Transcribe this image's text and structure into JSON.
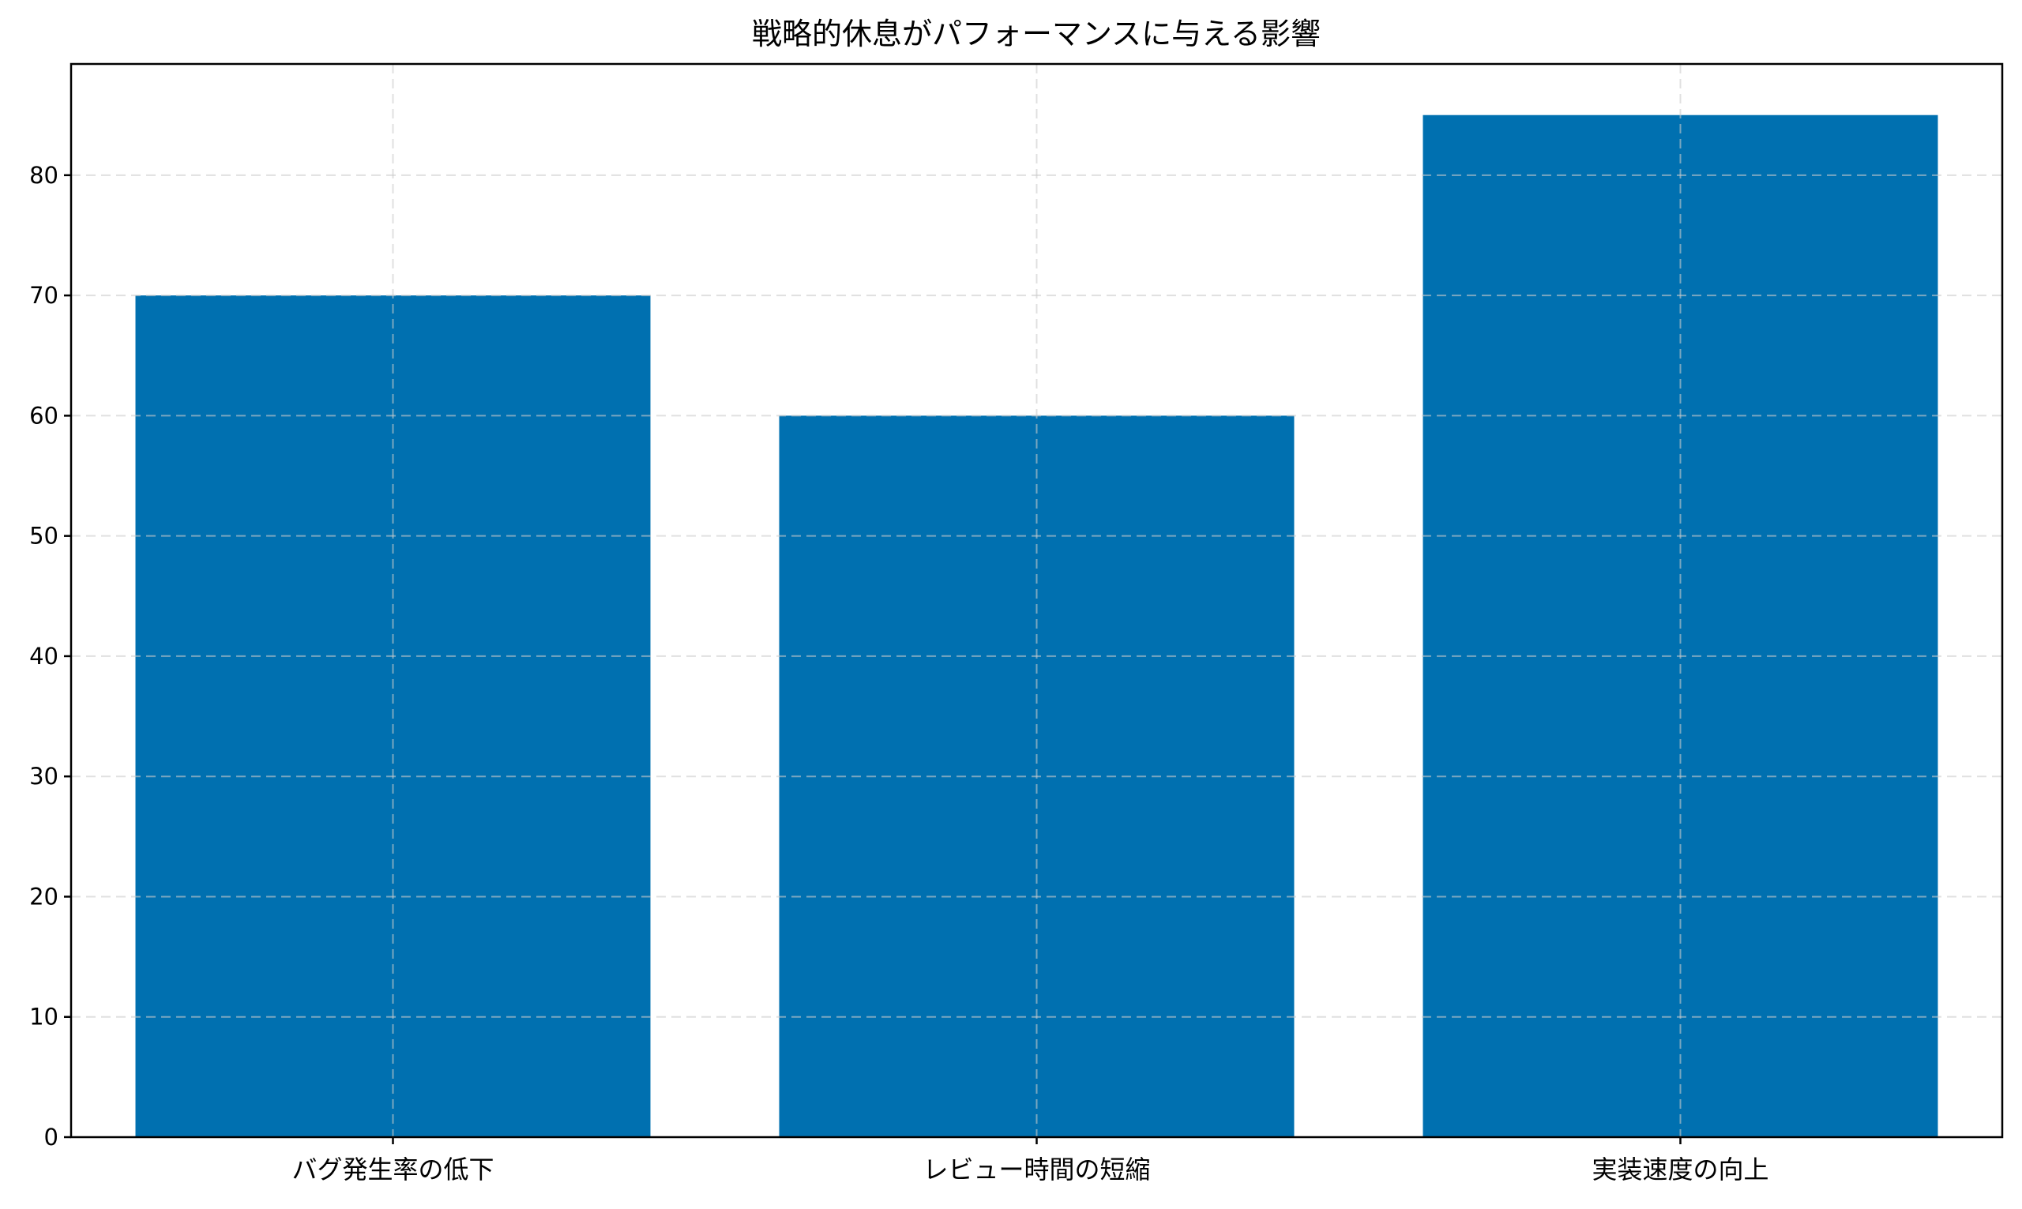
{
  "chart_data": {
    "type": "bar",
    "title": "戦略的休息がパフォーマンスに与える影響",
    "xlabel": "",
    "ylabel": "",
    "categories": [
      "バグ発生率の低下",
      "レビュー時間の短縮",
      "実装速度の向上"
    ],
    "values": [
      70,
      60,
      85
    ],
    "ylim": [
      0,
      89.25
    ],
    "yticks": [
      0,
      10,
      20,
      30,
      40,
      50,
      60,
      70,
      80
    ],
    "grid": true,
    "legend": "none",
    "bar_color": "#0070b0"
  }
}
